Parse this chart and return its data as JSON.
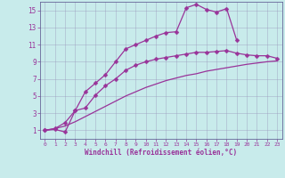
{
  "xlabel": "Windchill (Refroidissement éolien,°C)",
  "bg_color": "#c8ebeb",
  "grid_color": "#b0d0d0",
  "line_color": "#993399",
  "xlim": [
    -0.5,
    23.5
  ],
  "ylim": [
    0,
    16
  ],
  "xticks": [
    0,
    1,
    2,
    3,
    4,
    5,
    6,
    7,
    8,
    9,
    10,
    11,
    12,
    13,
    14,
    15,
    16,
    17,
    18,
    19,
    20,
    21,
    22,
    23
  ],
  "yticks": [
    1,
    3,
    5,
    7,
    9,
    11,
    13,
    15
  ],
  "curve1_x": [
    0,
    1,
    2,
    3,
    4,
    5,
    6,
    7,
    8,
    9,
    10,
    11,
    12,
    13,
    14,
    15,
    16,
    17,
    18,
    19,
    20,
    21,
    22,
    23
  ],
  "curve1_y": [
    1.0,
    1.2,
    1.9,
    3.3,
    5.5,
    6.5,
    7.5,
    9.0,
    10.5,
    11.0,
    11.5,
    12.0,
    12.4,
    12.5,
    15.3,
    15.7,
    15.1,
    14.8,
    15.2,
    11.5,
    null,
    null,
    null,
    null
  ],
  "curve2_x": [
    0,
    1,
    2,
    3,
    4,
    5,
    6,
    7,
    8,
    9,
    10,
    11,
    12,
    13,
    14,
    15,
    16,
    17,
    18,
    19,
    20,
    21,
    22,
    23
  ],
  "curve2_y": [
    1.0,
    1.1,
    0.8,
    3.3,
    3.6,
    5.1,
    6.2,
    7.0,
    8.0,
    8.6,
    9.0,
    9.3,
    9.5,
    9.7,
    9.9,
    10.1,
    10.1,
    10.2,
    10.3,
    10.0,
    9.8,
    9.7,
    9.7,
    9.4
  ],
  "curve3_x": [
    0,
    1,
    2,
    3,
    4,
    5,
    6,
    7,
    8,
    9,
    10,
    11,
    12,
    13,
    14,
    15,
    16,
    17,
    18,
    19,
    20,
    21,
    22,
    23
  ],
  "curve3_y": [
    1.0,
    1.2,
    1.5,
    2.0,
    2.6,
    3.2,
    3.8,
    4.4,
    5.0,
    5.5,
    6.0,
    6.4,
    6.8,
    7.1,
    7.4,
    7.6,
    7.9,
    8.1,
    8.3,
    8.5,
    8.7,
    8.85,
    9.0,
    9.1
  ]
}
